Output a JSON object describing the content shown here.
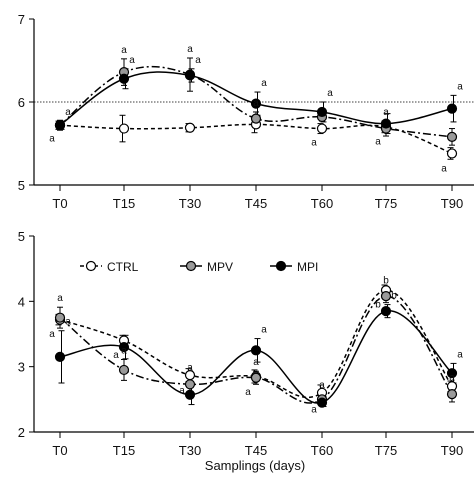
{
  "chart_data": [
    {
      "type": "line",
      "x": [
        "T0",
        "T15",
        "T30",
        "T45",
        "T60",
        "T75",
        "T90"
      ],
      "ylim": [
        5,
        7
      ],
      "yticks": [
        "5",
        "6",
        "7"
      ],
      "reference_line": 6,
      "series": [
        {
          "name": "CTRL",
          "color": "#ffffff",
          "dash": "dashed",
          "values": [
            5.72,
            5.68,
            5.69,
            5.73,
            5.68,
            5.7,
            5.38
          ],
          "errors": [
            0.05,
            0.16,
            0.05,
            0.1,
            0.06,
            0.07,
            0.07
          ],
          "sig": [
            "a",
            "",
            "",
            "",
            "a",
            "a",
            "a"
          ]
        },
        {
          "name": "MPV",
          "color": "#9a9a9a",
          "dash": "dashdot",
          "values": [
            5.72,
            6.36,
            6.33,
            5.8,
            5.82,
            5.68,
            5.58
          ],
          "errors": [
            0.06,
            0.16,
            0.2,
            0.08,
            0.05,
            0.09,
            0.1
          ],
          "sig": [
            "",
            "a",
            "a",
            "a",
            "",
            "a",
            ""
          ]
        },
        {
          "name": "MPI",
          "color": "#000000",
          "dash": "solid",
          "values": [
            5.72,
            6.28,
            6.32,
            5.98,
            5.88,
            5.74,
            5.92
          ],
          "errors": [
            0.05,
            0.12,
            0.08,
            0.14,
            0.12,
            0.12,
            0.16
          ],
          "sig": [
            "a",
            "a",
            "a",
            "a",
            "a",
            "",
            "a"
          ]
        }
      ]
    },
    {
      "type": "line",
      "x": [
        "T0",
        "T15",
        "T30",
        "T45",
        "T60",
        "T75",
        "T90"
      ],
      "ylim": [
        2,
        5
      ],
      "yticks": [
        "2",
        "3",
        "4",
        "5"
      ],
      "xlabel": "Samplings (days)",
      "series": [
        {
          "name": "CTRL",
          "color": "#ffffff",
          "dash": "dashed",
          "values": [
            3.72,
            3.4,
            2.87,
            2.85,
            2.6,
            4.17,
            2.7
          ],
          "errors": [
            0.08,
            0.08,
            0.1,
            0.1,
            0.12,
            0.08,
            0.08
          ],
          "sig": [
            "a",
            "a",
            "a",
            "a",
            "a",
            "b",
            ""
          ]
        },
        {
          "name": "MPV",
          "color": "#9a9a9a",
          "dash": "dashdot",
          "values": [
            3.75,
            2.95,
            2.73,
            2.83,
            2.5,
            4.08,
            2.58
          ],
          "errors": [
            0.16,
            0.16,
            0.12,
            0.1,
            0.08,
            0.1,
            0.12
          ],
          "sig": [
            "a",
            "a",
            "a",
            "a",
            "a",
            "b",
            "a"
          ]
        },
        {
          "name": "MPI",
          "color": "#000000",
          "dash": "solid",
          "values": [
            3.15,
            3.3,
            2.57,
            3.25,
            2.45,
            3.85,
            2.9
          ],
          "errors": [
            0.4,
            0.18,
            0.15,
            0.18,
            0.06,
            0.1,
            0.15
          ],
          "sig": [
            "a",
            "",
            "",
            "a",
            "",
            "b",
            "a"
          ]
        }
      ]
    }
  ]
}
